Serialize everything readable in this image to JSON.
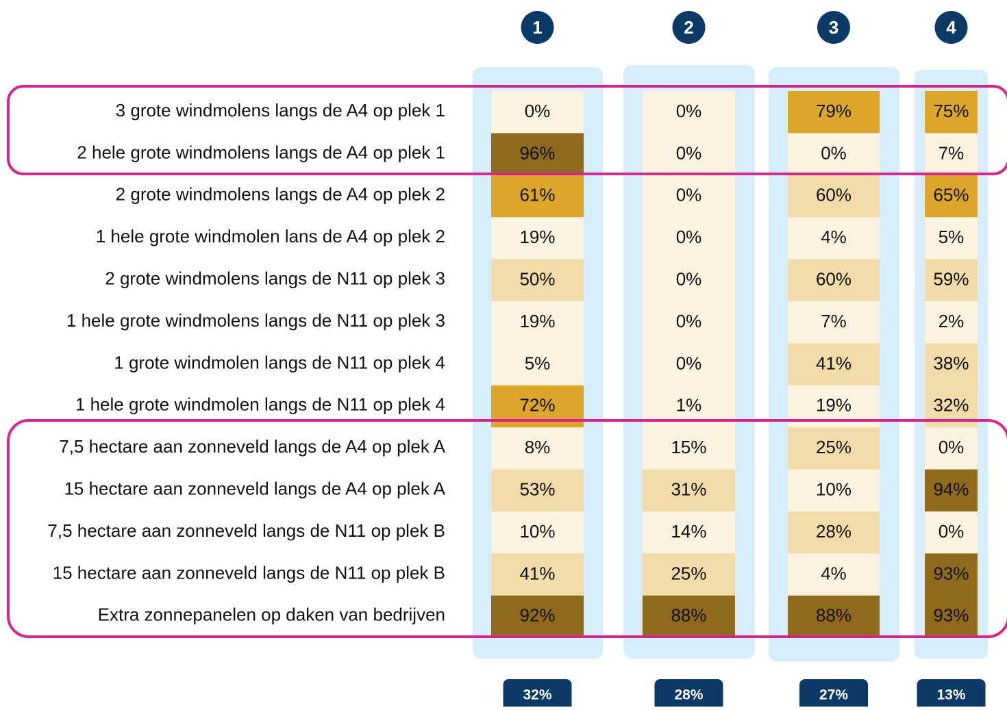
{
  "table": {
    "columns": [
      "1",
      "2",
      "3",
      "4"
    ],
    "rows": [
      {
        "label": "3 grote windmolens langs de A4 op plek 1",
        "cells": [
          {
            "text": "0%",
            "color": "#fbf2e0"
          },
          {
            "text": "0%",
            "color": "#fbf2e0"
          },
          {
            "text": "79%",
            "color": "#dba62a"
          },
          {
            "text": "75%",
            "color": "#dba62a"
          }
        ]
      },
      {
        "label": "2 hele grote windmolens langs de A4 op plek 1",
        "cells": [
          {
            "text": "96%",
            "color": "#8f6a1c"
          },
          {
            "text": "0%",
            "color": "#fbf2e0"
          },
          {
            "text": "0%",
            "color": "#fbf2e0"
          },
          {
            "text": "7%",
            "color": "#fbf2e0"
          }
        ]
      },
      {
        "label": "2 grote windmolens langs de A4 op plek 2",
        "cells": [
          {
            "text": "61%",
            "color": "#dba62a"
          },
          {
            "text": "0%",
            "color": "#fbf2e0"
          },
          {
            "text": "60%",
            "color": "#f1dba8"
          },
          {
            "text": "65%",
            "color": "#dba62a"
          }
        ]
      },
      {
        "label": "1 hele grote windmolen lans de A4 op plek 2",
        "cells": [
          {
            "text": "19%",
            "color": "#fbf2e0"
          },
          {
            "text": "0%",
            "color": "#fbf2e0"
          },
          {
            "text": "4%",
            "color": "#fbf2e0"
          },
          {
            "text": "5%",
            "color": "#fbf2e0"
          }
        ]
      },
      {
        "label": "2 grote windmolens langs de N11 op plek 3",
        "cells": [
          {
            "text": "50%",
            "color": "#f1dba8"
          },
          {
            "text": "0%",
            "color": "#fbf2e0"
          },
          {
            "text": "60%",
            "color": "#f1dba8"
          },
          {
            "text": "59%",
            "color": "#f1dba8"
          }
        ]
      },
      {
        "label": "1 hele grote windmolens langs de N11 op plek 3",
        "cells": [
          {
            "text": "19%",
            "color": "#fbf2e0"
          },
          {
            "text": "0%",
            "color": "#fbf2e0"
          },
          {
            "text": "7%",
            "color": "#fbf2e0"
          },
          {
            "text": "2%",
            "color": "#fbf2e0"
          }
        ]
      },
      {
        "label": "1 grote windmolen langs de N11 op plek 4",
        "cells": [
          {
            "text": "5%",
            "color": "#fbf2e0"
          },
          {
            "text": "0%",
            "color": "#fbf2e0"
          },
          {
            "text": "41%",
            "color": "#f1dba8"
          },
          {
            "text": "38%",
            "color": "#f1dba8"
          }
        ]
      },
      {
        "label": "1 hele grote windmolen langs de N11 op plek 4",
        "cells": [
          {
            "text": "72%",
            "color": "#dba62a"
          },
          {
            "text": "1%",
            "color": "#fbf2e0"
          },
          {
            "text": "19%",
            "color": "#fbf2e0"
          },
          {
            "text": "32%",
            "color": "#f1dba8"
          }
        ]
      },
      {
        "label": "7,5 hectare aan zonneveld langs de A4 op plek A",
        "cells": [
          {
            "text": "8%",
            "color": "#fbf2e0"
          },
          {
            "text": "15%",
            "color": "#fbf2e0"
          },
          {
            "text": "25%",
            "color": "#f1dba8"
          },
          {
            "text": "0%",
            "color": "#fbf2e0"
          }
        ]
      },
      {
        "label": "15 hectare aan zonneveld langs de A4 op plek A",
        "cells": [
          {
            "text": "53%",
            "color": "#f1dba8"
          },
          {
            "text": "31%",
            "color": "#f1dba8"
          },
          {
            "text": "10%",
            "color": "#fbf2e0"
          },
          {
            "text": "94%",
            "color": "#8f6a1c"
          }
        ]
      },
      {
        "label": "7,5 hectare aan zonneveld langs de N11 op plek B",
        "cells": [
          {
            "text": "10%",
            "color": "#fbf2e0"
          },
          {
            "text": "14%",
            "color": "#fbf2e0"
          },
          {
            "text": "28%",
            "color": "#f1dba8"
          },
          {
            "text": "0%",
            "color": "#fbf2e0"
          }
        ]
      },
      {
        "label": "15 hectare aan zonneveld langs de N11 op plek B",
        "cells": [
          {
            "text": "41%",
            "color": "#f1dba8"
          },
          {
            "text": "25%",
            "color": "#f1dba8"
          },
          {
            "text": "4%",
            "color": "#fbf2e0"
          },
          {
            "text": "93%",
            "color": "#8f6a1c"
          }
        ]
      },
      {
        "label": "Extra zonnepanelen op daken van bedrijven",
        "cells": [
          {
            "text": "92%",
            "color": "#8f6a1c"
          },
          {
            "text": "88%",
            "color": "#8f6a1c"
          },
          {
            "text": "88%",
            "color": "#8f6a1c"
          },
          {
            "text": "93%",
            "color": "#8f6a1c"
          }
        ]
      }
    ],
    "totals": [
      "32%",
      "28%",
      "27%",
      "13%"
    ]
  }
}
